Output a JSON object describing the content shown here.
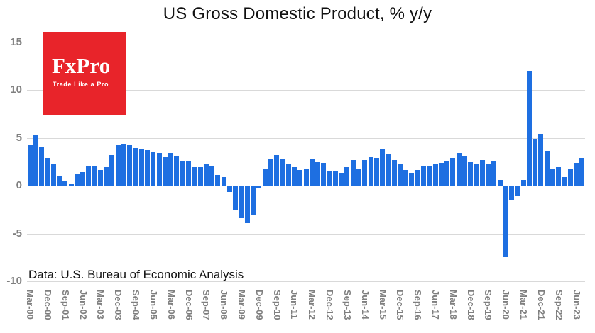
{
  "title": "US Gross Domestic Product, % y/y",
  "logo": {
    "name": "FxPro",
    "tagline": "Trade Like a Pro",
    "bg_color": "#e8242a",
    "text_color": "#ffffff"
  },
  "footer_note": "Data: U.S. Bureau of Economic Analysis",
  "chart_data": {
    "type": "bar",
    "title": "US Gross Domestic Product, % y/y",
    "ylabel": "",
    "xlabel": "",
    "ylim": [
      -10,
      15
    ],
    "yticks": [
      15,
      10,
      5,
      0,
      -5,
      -10
    ],
    "grid": true,
    "bar_color": "#1e6fe1",
    "grid_color": "#d9d9d9",
    "axis_label_color": "#7f7f7f",
    "x_tick_every": 3,
    "x_tick_labels": [
      "Mar-00",
      "Dec-00",
      "Sep-01",
      "Jun-02",
      "Mar-03",
      "Dec-03",
      "Sep-04",
      "Jun-05",
      "Mar-06",
      "Dec-06",
      "Sep-07",
      "Jun-08",
      "Mar-09",
      "Dec-09",
      "Sep-10",
      "Jun-11",
      "Mar-12",
      "Dec-12",
      "Sep-13",
      "Jun-14",
      "Mar-15",
      "Dec-15",
      "Sep-16",
      "Jun-17",
      "Mar-18",
      "Dec-18",
      "Sep-19",
      "Jun-20",
      "Mar-21",
      "Dec-21",
      "Sep-22",
      "Jun-23"
    ],
    "values": [
      4.2,
      5.3,
      4.1,
      2.9,
      2.2,
      1.0,
      0.5,
      0.2,
      1.2,
      1.4,
      2.1,
      2.0,
      1.6,
      1.9,
      3.2,
      4.3,
      4.4,
      4.3,
      3.9,
      3.8,
      3.7,
      3.5,
      3.4,
      3.0,
      3.4,
      3.1,
      2.6,
      2.6,
      1.9,
      1.9,
      2.2,
      2.0,
      1.1,
      0.9,
      -0.7,
      -2.5,
      -3.3,
      -3.9,
      -3.0,
      -0.2,
      1.7,
      2.8,
      3.2,
      2.8,
      2.2,
      1.9,
      1.6,
      1.8,
      2.8,
      2.5,
      2.4,
      1.5,
      1.5,
      1.3,
      1.9,
      2.7,
      1.8,
      2.7,
      3.0,
      2.9,
      3.8,
      3.3,
      2.7,
      2.2,
      1.6,
      1.3,
      1.6,
      2.0,
      2.1,
      2.2,
      2.4,
      2.6,
      2.9,
      3.4,
      3.1,
      2.5,
      2.3,
      2.7,
      2.3,
      2.6,
      0.6,
      -7.5,
      -1.5,
      -1.0,
      0.6,
      12.0,
      4.9,
      5.4,
      3.6,
      1.8,
      1.9,
      0.9,
      1.7,
      2.4,
      2.9
    ]
  }
}
